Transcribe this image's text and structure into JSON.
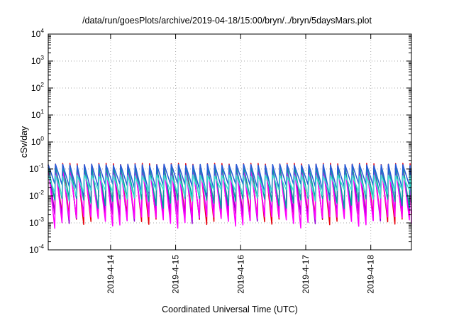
{
  "chart_data": {
    "type": "line",
    "title": "/data/run/goesPlots/archive/2019-04-18/15:00/bryn/../bryn/5daysMars.plot",
    "xlabel": "Coordinated Universal Time (UTC)",
    "ylabel": "cSv/day",
    "yscale": "log",
    "ylim": [
      0.0001,
      10000
    ],
    "y_ticks": [
      {
        "base": "10",
        "exp": "-4",
        "value": 0.0001
      },
      {
        "base": "10",
        "exp": "-3",
        "value": 0.001
      },
      {
        "base": "10",
        "exp": "-2",
        "value": 0.01
      },
      {
        "base": "10",
        "exp": "-1",
        "value": 0.1
      },
      {
        "base": "10",
        "exp": "0",
        "value": 1
      },
      {
        "base": "10",
        "exp": "1",
        "value": 10
      },
      {
        "base": "10",
        "exp": "2",
        "value": 100
      },
      {
        "base": "10",
        "exp": "3",
        "value": 1000
      },
      {
        "base": "10",
        "exp": "4",
        "value": 10000
      }
    ],
    "x_tick_labels": [
      "2019-4-14",
      "2019-4-15",
      "2019-4-16",
      "2019-4-17",
      "2019-4-18"
    ],
    "xlim": [
      "2019-04-13 01:00",
      "2019-04-18 15:00"
    ],
    "grid": true,
    "oscillation_period_hours": 2.67,
    "series": [
      {
        "color": "#e8000b",
        "peak": 0.16,
        "trough": 0.0015
      },
      {
        "color": "#9400d3",
        "peak": 0.14,
        "trough": 0.0018
      },
      {
        "color": "#ff00ff",
        "peak": 0.12,
        "trough": 0.0012
      },
      {
        "color": "#00a0a0",
        "peak": 0.13,
        "trough": 0.006
      },
      {
        "color": "#2a5bd7",
        "peak": 0.15,
        "trough": 0.02
      },
      {
        "color": "#40e0d0",
        "peak": 0.06,
        "trough": 0.012
      }
    ]
  }
}
